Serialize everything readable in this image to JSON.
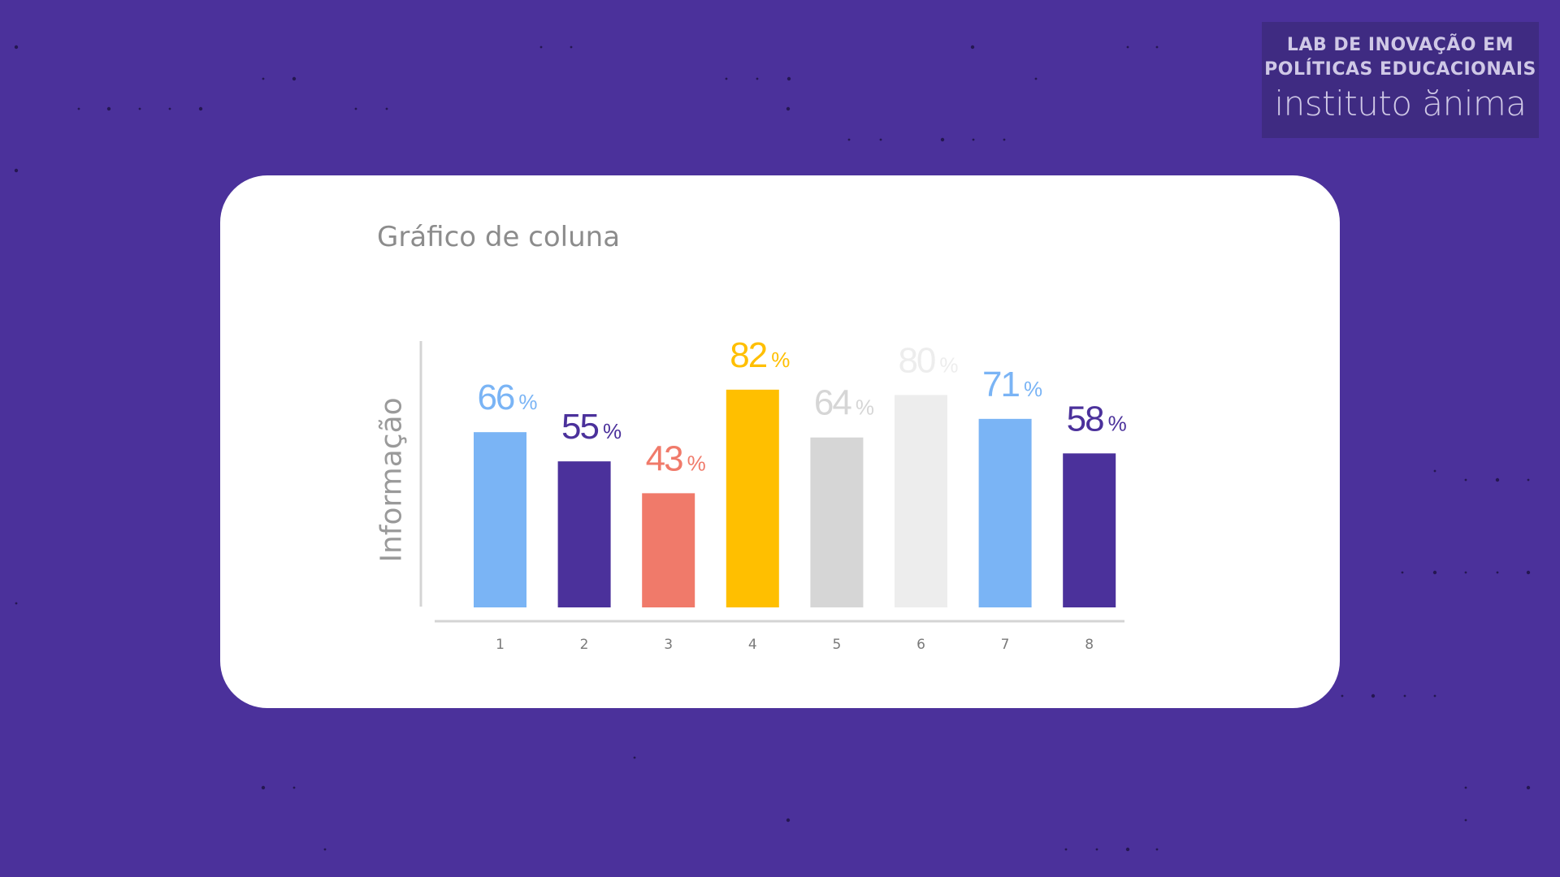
{
  "brand": {
    "line1": "LAB DE  INOVAÇÃO EM",
    "line2": "POLÍTICAS EDUCACIONAIS",
    "logo_text": "instituto ănima"
  },
  "chart_data": {
    "type": "bar",
    "title": "Gráfico de coluna",
    "xlabel": "",
    "ylabel": "Informação",
    "ylim": [
      0,
      100
    ],
    "grid": false,
    "categories": [
      "1",
      "2",
      "3",
      "4",
      "5",
      "6",
      "7",
      "8"
    ],
    "values": [
      66,
      55,
      43,
      82,
      64,
      80,
      71,
      58
    ],
    "value_suffix": "%",
    "colors": [
      "#7ab4f5",
      "#4b319b",
      "#f07a6a",
      "#ffbf00",
      "#d6d6d6",
      "#ededed",
      "#7ab4f5",
      "#4b319b"
    ]
  }
}
